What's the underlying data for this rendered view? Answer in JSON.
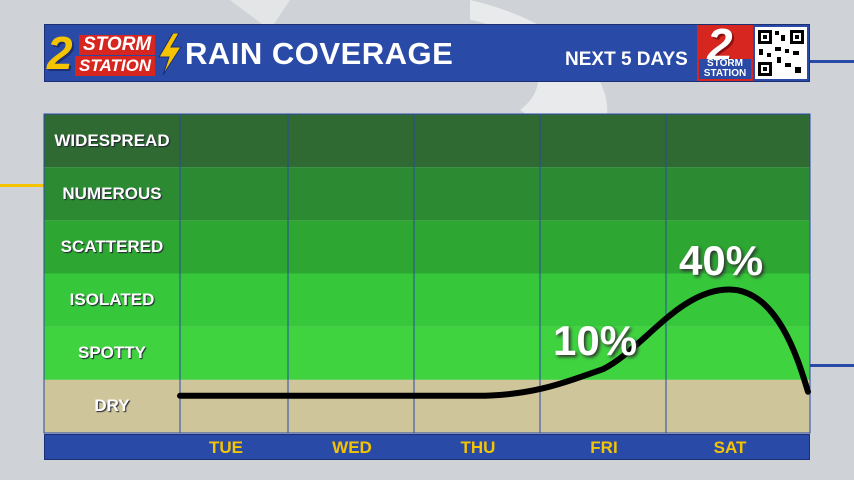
{
  "header": {
    "logo_left_number": "2",
    "logo_left_word1": "STORM",
    "logo_left_word2": "STATION",
    "title": "RAIN COVERAGE",
    "subtitle": "NEXT 5 DAYS",
    "logo_right_number": "2",
    "logo_right_word": "STORM STATION"
  },
  "colors": {
    "header_blue": "#2a4aa8",
    "day_text": "#f5c400",
    "dry": "#cfc59a",
    "spotty": "#3fd33f",
    "isolated": "#36c83a",
    "scattered": "#2da632",
    "numerous": "#2c8a33",
    "widespread": "#2e6a31",
    "line": "#000000"
  },
  "chart_data": {
    "type": "line",
    "categories_y": [
      "WIDESPREAD",
      "NUMEROUS",
      "SCATTERED",
      "ISOLATED",
      "SPOTTY",
      "DRY"
    ],
    "x": [
      "TUE",
      "WED",
      "THU",
      "FRI",
      "SAT"
    ],
    "series": [
      {
        "values": [
          0,
          0,
          0,
          10,
          40
        ]
      }
    ],
    "labels": [
      {
        "x": "FRI",
        "text": "10%"
      },
      {
        "x": "SAT",
        "text": "40%"
      }
    ],
    "ylim": [
      0,
      100
    ]
  }
}
